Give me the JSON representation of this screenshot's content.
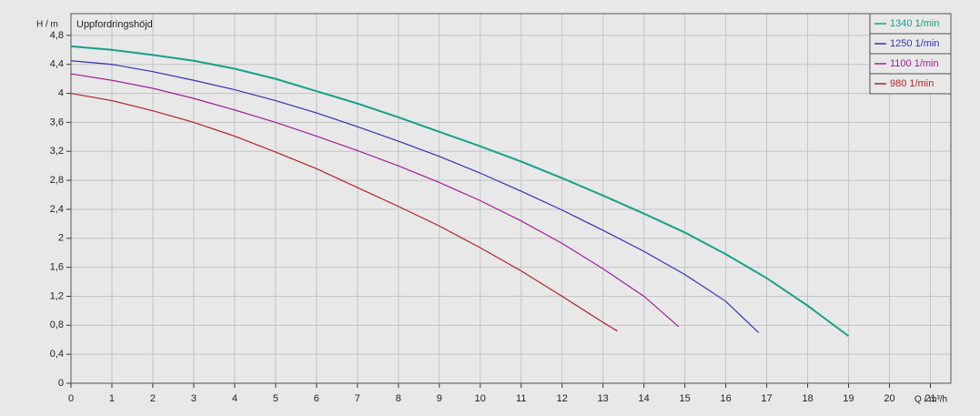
{
  "chart_data": {
    "type": "line",
    "title": "Uppfordringshöjd",
    "y_label": "H / m",
    "x_label": "Q / m³/h",
    "xlim": [
      0,
      21.5
    ],
    "ylim": [
      0,
      5.1
    ],
    "xticks": [
      0,
      1,
      2,
      3,
      4,
      5,
      6,
      7,
      8,
      9,
      10,
      11,
      12,
      13,
      14,
      15,
      16,
      17,
      18,
      19,
      20,
      21
    ],
    "yticks": [
      0,
      {
        "value": 0.4,
        "label": "0,4"
      },
      {
        "value": 0.8,
        "label": "0,8"
      },
      {
        "value": 1.2,
        "label": "1,2"
      },
      {
        "value": 1.6,
        "label": "1,6"
      },
      2,
      {
        "value": 2.4,
        "label": "2,4"
      },
      {
        "value": 2.8,
        "label": "2,8"
      },
      {
        "value": 3.2,
        "label": "3,2"
      },
      {
        "value": 3.6,
        "label": "3,6"
      },
      4,
      {
        "value": 4.4,
        "label": "4,4"
      },
      {
        "value": 4.8,
        "label": "4,8"
      }
    ],
    "grid": true,
    "legend": "top-right",
    "series": [
      {
        "name": "1340 1/min",
        "color": "#17a08a",
        "x": [
          0,
          1,
          2,
          3,
          4,
          5,
          6,
          7,
          8,
          9,
          10,
          11,
          12,
          13,
          14,
          15,
          16,
          17,
          18,
          19
        ],
        "values": [
          4.65,
          4.6,
          4.53,
          4.45,
          4.34,
          4.2,
          4.03,
          3.86,
          3.67,
          3.47,
          3.27,
          3.06,
          2.83,
          2.59,
          2.34,
          2.08,
          1.78,
          1.45,
          1.07,
          0.65
        ]
      },
      {
        "name": "1250 1/min",
        "color": "#3232b4",
        "x": [
          0,
          1,
          2,
          3,
          4,
          5,
          6,
          7,
          8,
          9,
          10,
          11,
          12,
          13,
          14,
          15,
          16,
          16.8
        ],
        "values": [
          4.45,
          4.4,
          4.3,
          4.18,
          4.05,
          3.9,
          3.73,
          3.54,
          3.34,
          3.13,
          2.9,
          2.65,
          2.39,
          2.11,
          1.82,
          1.5,
          1.13,
          0.7
        ]
      },
      {
        "name": "1100 1/min",
        "color": "#a0209a",
        "x": [
          0,
          1,
          2,
          3,
          4,
          5,
          6,
          7,
          8,
          9,
          10,
          11,
          12,
          13,
          14,
          14.85
        ],
        "values": [
          4.27,
          4.18,
          4.07,
          3.93,
          3.77,
          3.6,
          3.41,
          3.21,
          3.0,
          2.77,
          2.52,
          2.24,
          1.93,
          1.58,
          1.2,
          0.78
        ]
      },
      {
        "name": "980 1/min",
        "color": "#b02424",
        "x": [
          0,
          1,
          2,
          3,
          4,
          5,
          6,
          7,
          8,
          9,
          10,
          11,
          12,
          13,
          13.35
        ],
        "values": [
          4.0,
          3.9,
          3.76,
          3.6,
          3.41,
          3.19,
          2.96,
          2.7,
          2.44,
          2.17,
          1.87,
          1.55,
          1.2,
          0.84,
          0.72
        ]
      }
    ]
  }
}
